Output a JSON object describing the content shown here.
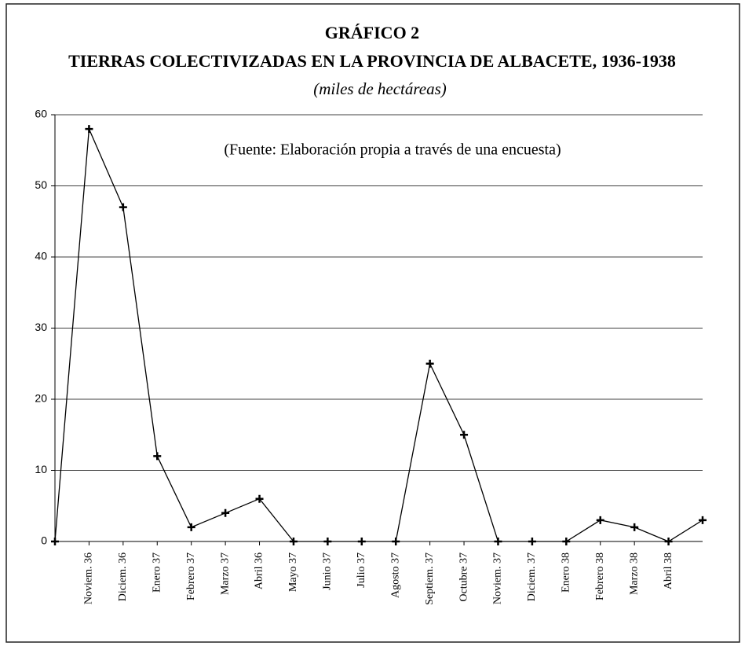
{
  "chart_data": {
    "type": "line",
    "title": "GRÁFICO 2",
    "subtitle": "TIERRAS COLECTIVIZADAS EN LA PROVINCIA DE ALBACETE, 1936-1938",
    "units_note": "(miles de hectáreas)",
    "annotation": "(Fuente: Elaboración propia a través de una encuesta)",
    "categories": [
      null,
      "Noviem. 36",
      "Diciem. 36",
      "Enero 37",
      "Febrero 37",
      "Marzo 37",
      "Abril 36",
      "Mayo 37",
      "Junio 37",
      "Julio 37",
      "Agosto 37",
      "Septiem. 37",
      "Octubre 37",
      "Noviem. 37",
      "Diciem. 37",
      "Enero 38",
      "Febrero 38",
      "Marzo 38",
      "Abril 38",
      null
    ],
    "values": [
      0,
      58,
      47,
      12,
      2,
      4,
      6,
      0,
      0,
      0,
      0,
      25,
      15,
      0,
      0,
      0,
      3,
      2,
      0,
      3
    ],
    "color": "#000000",
    "ylim": [
      0,
      60
    ],
    "yticks": [
      0,
      10,
      20,
      30,
      40,
      50,
      60
    ],
    "grid": true
  }
}
